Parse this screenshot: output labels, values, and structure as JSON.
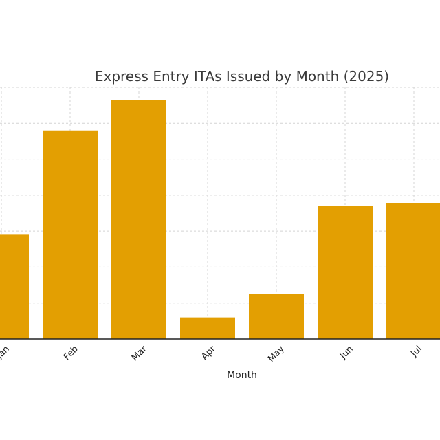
{
  "chart_data": {
    "type": "bar",
    "title": "Express Entry ITAs Issued by Month (2025)",
    "xlabel": "Month",
    "ylabel": "",
    "categories": [
      "Jan",
      "Feb",
      "Mar",
      "Apr",
      "May",
      "Jun",
      "Jul"
    ],
    "values": [
      2900,
      5800,
      6650,
      600,
      1250,
      3700,
      3770
    ],
    "ylim": [
      0,
      7000
    ],
    "grid": true,
    "legend": "none",
    "bar_color": "#E39F02"
  }
}
